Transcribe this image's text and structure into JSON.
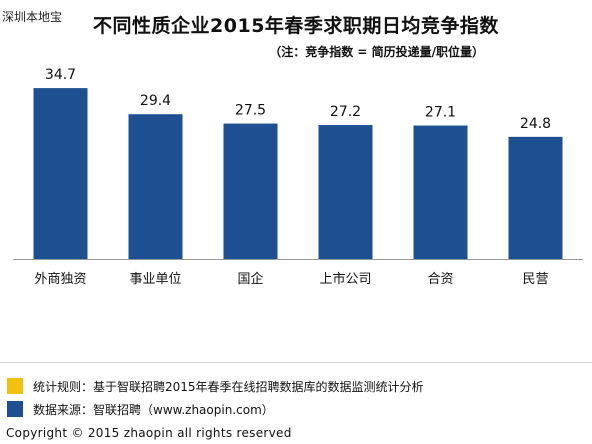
{
  "watermark": "深圳本地宝",
  "legend": [
    {
      "text": "统计规则：基于智联招聘2015年春季在线招聘数据库的数据监测统计分析",
      "color": "#f2c10f"
    },
    {
      "text": "数据来源：智联招聘（www.zhaopin.com）",
      "color": "#1d4f91"
    }
  ],
  "copyright": "Copyright   ©  2015 zhaopin all rights reserved",
  "chart_data": {
    "type": "bar",
    "title": "不同性质企业2015年春季求职期日均竞争指数",
    "subtitle": "（注：竞争指数 = 简历投递量/职位量）",
    "categories": [
      "外商独资",
      "事业单位",
      "国企",
      "上市公司",
      "合资",
      "民营"
    ],
    "values": [
      34.7,
      29.4,
      27.5,
      27.2,
      27.1,
      24.8
    ],
    "value_labels": [
      "34.7",
      "29.4",
      "27.5",
      "27.2",
      "27.1",
      "24.8"
    ],
    "bar_color": "#1d4f91",
    "ylim": [
      0,
      40
    ],
    "grid": false,
    "legend": "none",
    "xlabel": "",
    "ylabel": ""
  }
}
